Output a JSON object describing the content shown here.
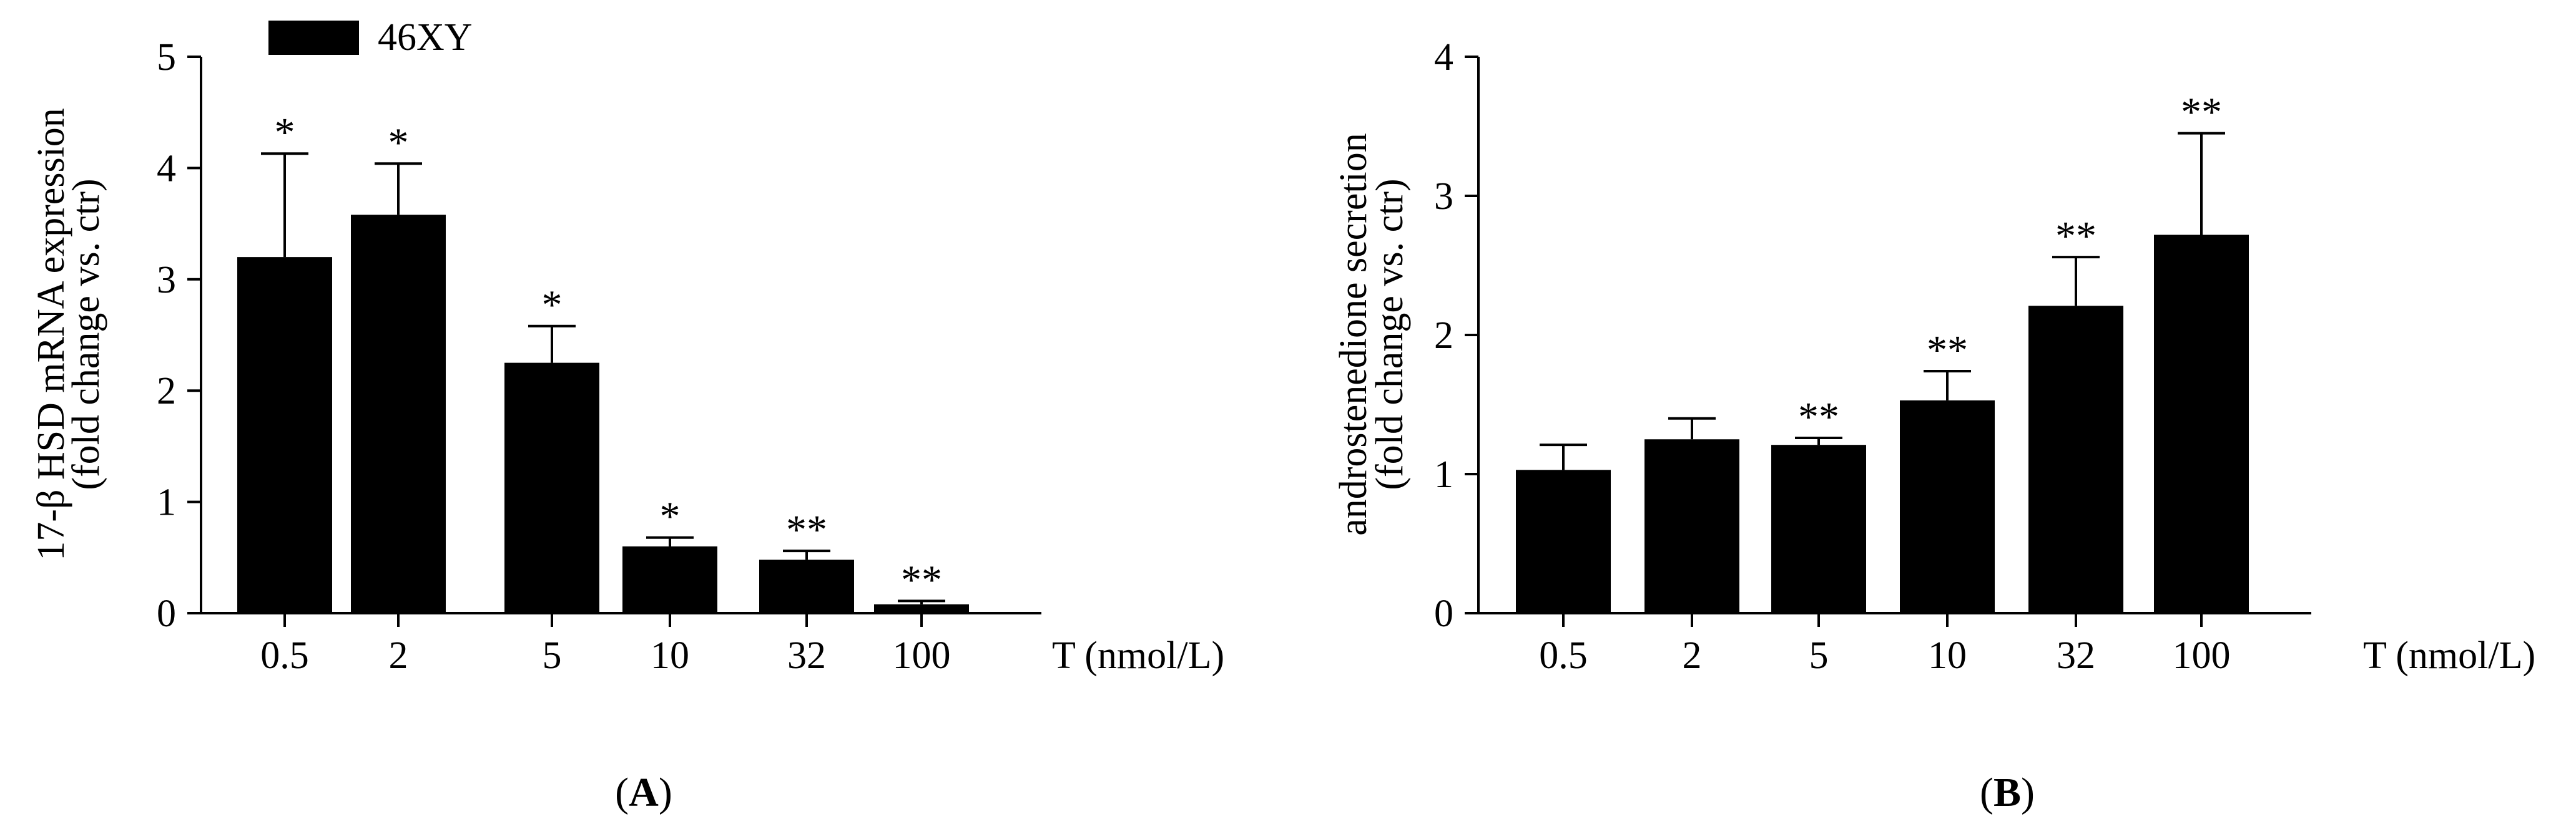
{
  "chart_data": [
    {
      "type": "bar",
      "panel_label": "A",
      "categories": [
        "0.5",
        "2",
        "5",
        "10",
        "32",
        "100"
      ],
      "values": [
        3.2,
        3.58,
        2.25,
        0.6,
        0.48,
        0.08
      ],
      "errors": [
        0.93,
        0.46,
        0.33,
        0.08,
        0.08,
        0.03
      ],
      "significance": [
        "*",
        "*",
        "*",
        "*",
        "**",
        "**"
      ],
      "ylabel_line1": "17-β HSD mRNA expression",
      "ylabel_line2": "(fold change vs. ctr)",
      "xlabel": "T (nmol/L)",
      "yticks": [
        "0",
        "1",
        "2",
        "3",
        "4",
        "5"
      ],
      "ylim": [
        0,
        5
      ],
      "legend": "46XY",
      "legend_position": "top-left",
      "bar_color": "#000000"
    },
    {
      "type": "bar",
      "panel_label": "B",
      "categories": [
        "0.5",
        "2",
        "5",
        "10",
        "32",
        "100"
      ],
      "values": [
        1.03,
        1.25,
        1.21,
        1.53,
        2.21,
        2.72
      ],
      "errors": [
        0.18,
        0.15,
        0.05,
        0.21,
        0.35,
        0.73
      ],
      "significance": [
        "",
        "",
        "**",
        "**",
        "**",
        "**"
      ],
      "ylabel_line1": "androstenedione secretion",
      "ylabel_line2": "(fold change vs. ctr)",
      "xlabel": "T (nmol/L)",
      "yticks": [
        "0",
        "1",
        "2",
        "3",
        "4"
      ],
      "ylim": [
        0,
        4
      ],
      "bar_color": "#000000"
    }
  ]
}
